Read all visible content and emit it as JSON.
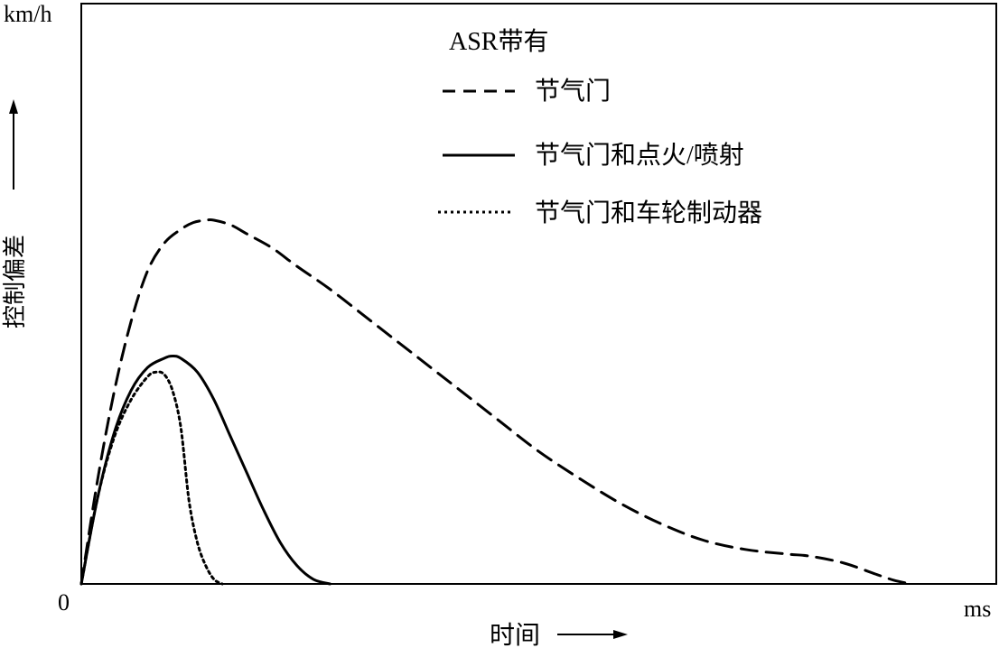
{
  "chart_data": {
    "type": "line",
    "title": "ASR带有",
    "ylabel": "控制偏差",
    "y_unit": "km/h",
    "xlabel": "时间",
    "x_unit": "ms",
    "origin_label": "0",
    "xlim": [
      0,
      1000
    ],
    "ylim": [
      0,
      100
    ],
    "grid": false,
    "legend_position": "top-center",
    "series": [
      {
        "name": "节气门",
        "style": "dashed",
        "x": [
          0,
          20,
          40,
          60,
          80,
          100,
          120,
          135,
          150,
          160,
          180,
          200,
          230,
          260,
          300,
          350,
          400,
          450,
          500,
          550,
          600,
          650,
          700,
          750,
          800,
          850,
          880,
          920,
          960,
          980,
          1000
        ],
        "y": [
          0,
          23,
          42,
          57,
          68,
          74,
          77,
          78.5,
          79,
          79,
          78,
          76,
          73,
          69,
          64,
          57,
          50,
          43,
          36,
          29,
          23,
          17.5,
          13,
          9.5,
          7.5,
          6.5,
          6,
          4.5,
          2,
          0.8,
          0
        ]
      },
      {
        "name": "节气门和点火/喷射",
        "style": "solid",
        "x": [
          0,
          20,
          40,
          60,
          80,
          100,
          110,
          120,
          140,
          160,
          180,
          200,
          220,
          240,
          260,
          280,
          300
        ],
        "y": [
          0,
          19,
          33,
          42,
          47,
          49,
          49.5,
          49,
          46,
          40,
          32,
          24,
          16,
          9,
          4,
          1,
          0
        ]
      },
      {
        "name": "节气门和车轮制动器",
        "style": "dotted",
        "x": [
          0,
          20,
          40,
          60,
          80,
          90,
          100,
          110,
          120,
          130,
          140,
          150,
          160,
          170
        ],
        "y": [
          0,
          19,
          32,
          40,
          45,
          46,
          45.5,
          42,
          34,
          18,
          9,
          4,
          1,
          0
        ]
      }
    ]
  }
}
